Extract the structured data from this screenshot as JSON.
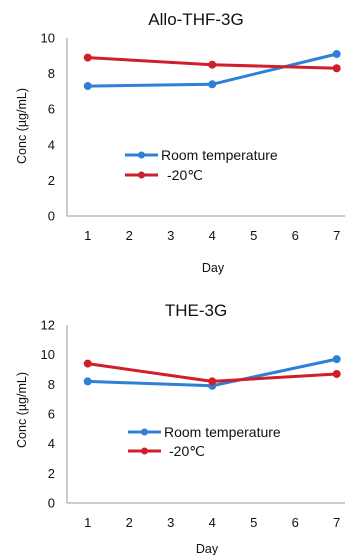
{
  "chart_data": [
    {
      "type": "line",
      "title": "Allo-THF-3G",
      "xlabel": "Day",
      "ylabel": "Conc (µg/mL)",
      "x_ticks": [
        "1",
        "2",
        "3",
        "4",
        "5",
        "6",
        "7"
      ],
      "y_ticks": [
        "0",
        "2",
        "4",
        "6",
        "8",
        "10"
      ],
      "xlim": [
        0.5,
        7.2
      ],
      "ylim": [
        0,
        10
      ],
      "grid": false,
      "legend_position": "center",
      "series": [
        {
          "name": "Room temperature",
          "color": "#2e7fd6",
          "x": [
            1,
            4,
            7
          ],
          "y": [
            7.3,
            7.4,
            9.1
          ]
        },
        {
          "name": "-20℃",
          "color": "#d01f2a",
          "x": [
            1,
            4,
            7
          ],
          "y": [
            8.9,
            8.5,
            8.3
          ]
        }
      ]
    },
    {
      "type": "line",
      "title": "THE-3G",
      "xlabel": "Day",
      "ylabel": "Conc (µg/mL)",
      "x_ticks": [
        "1",
        "2",
        "3",
        "4",
        "5",
        "6",
        "7"
      ],
      "y_ticks": [
        "0",
        "2",
        "4",
        "6",
        "8",
        "10",
        "12"
      ],
      "xlim": [
        0.5,
        7.2
      ],
      "ylim": [
        0,
        12
      ],
      "grid": false,
      "legend_position": "center",
      "series": [
        {
          "name": "Room temperature",
          "color": "#2e7fd6",
          "x": [
            1,
            4,
            7
          ],
          "y": [
            8.2,
            7.9,
            9.7
          ]
        },
        {
          "name": "-20℃",
          "color": "#d01f2a",
          "x": [
            1,
            4,
            7
          ],
          "y": [
            9.4,
            8.2,
            8.7
          ]
        }
      ]
    }
  ]
}
